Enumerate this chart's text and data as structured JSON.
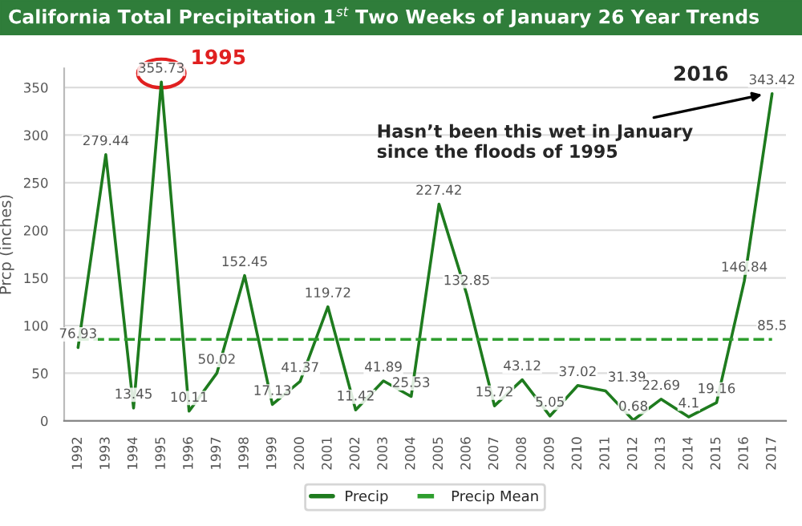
{
  "chart_data": {
    "type": "line",
    "title": "California Total Precipitation 1$^{st}$ Two Weeks of January 26 Year Trends",
    "ylabel": "Prcp (inches)",
    "categories": [
      "1992",
      "1993",
      "1994",
      "1995",
      "1996",
      "1997",
      "1998",
      "1999",
      "2000",
      "2001",
      "2002",
      "2003",
      "2004",
      "2005",
      "2006",
      "2007",
      "2008",
      "2009",
      "2010",
      "2011",
      "2012",
      "2013",
      "2014",
      "2015",
      "2016",
      "2017"
    ],
    "series": [
      {
        "name": "Precip",
        "color": "#1e7b1e",
        "line_style": "solid",
        "values": [
          76.93,
          279.44,
          13.45,
          355.73,
          10.11,
          50.02,
          152.45,
          17.13,
          41.37,
          119.72,
          11.42,
          41.89,
          25.53,
          227.42,
          132.85,
          15.72,
          43.12,
          5.05,
          37.02,
          31.39,
          0.68,
          22.69,
          4.1,
          19.16,
          146.84,
          343.42
        ]
      },
      {
        "name": "Precip Mean",
        "color": "#2e9e2e",
        "line_style": "dashed",
        "values": [
          85.5,
          85.5,
          85.5,
          85.5,
          85.5,
          85.5,
          85.5,
          85.5,
          85.5,
          85.5,
          85.5,
          85.5,
          85.5,
          85.5,
          85.5,
          85.5,
          85.5,
          85.5,
          85.5,
          85.5,
          85.5,
          85.5,
          85.5,
          85.5,
          85.5,
          85.5
        ],
        "value_labels": [
          null,
          null,
          null,
          null,
          null,
          null,
          null,
          null,
          null,
          null,
          null,
          null,
          null,
          null,
          null,
          null,
          null,
          null,
          null,
          null,
          null,
          null,
          null,
          null,
          null,
          "85.5"
        ]
      }
    ],
    "data_labels": true,
    "ylim": [
      0,
      370
    ],
    "yticks": [
      0,
      50,
      100,
      150,
      200,
      250,
      300,
      350
    ],
    "grid": "y",
    "legend": "bottom",
    "marker": "none",
    "annotations": [
      "1995",
      {
        "text": "Hasn’t been this wet in January\nsince the floods of 1995",
        "x": "2017",
        "y": 343.42
      },
      {
        "text": "2016",
        "x": "2017",
        "y": 343.42
      }
    ]
  }
}
